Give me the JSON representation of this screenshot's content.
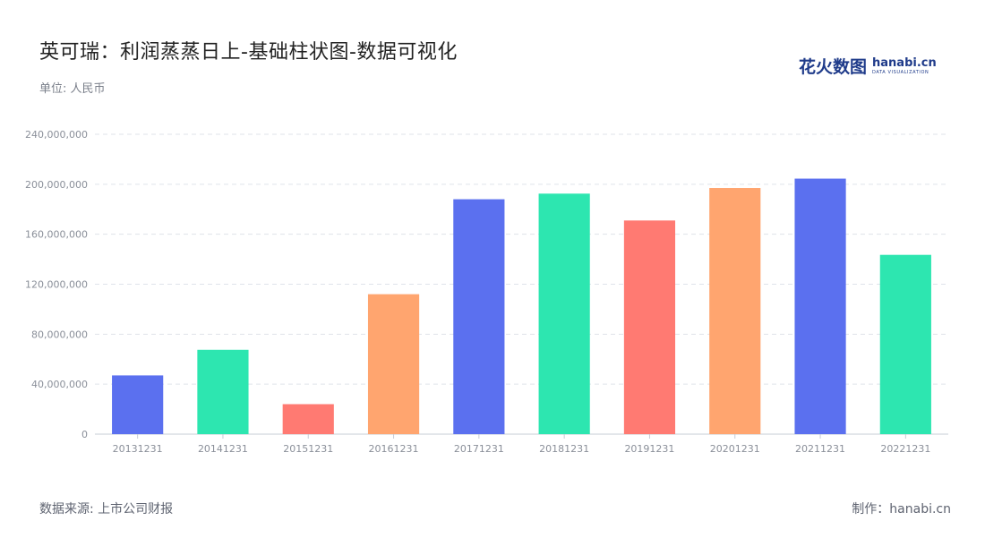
{
  "header": {
    "title": "英可瑞：利润蒸蒸日上-基础柱状图-数据可视化",
    "unit": "单位: 人民币"
  },
  "brand": {
    "cn": "花火数图",
    "en": "hanabi.cn",
    "en_sub": "DATA VISUALIZATION",
    "color": "#1f3b8a"
  },
  "footer": {
    "source": "数据来源: 上市公司财报",
    "credit": "制作：hanabi.cn"
  },
  "chart_data": {
    "type": "bar",
    "categories": [
      "20131231",
      "20141231",
      "20151231",
      "20161231",
      "20171231",
      "20181231",
      "20191231",
      "20201231",
      "20211231",
      "20221231"
    ],
    "values": [
      47000000,
      67500000,
      24000000,
      112000000,
      188000000,
      192500000,
      171000000,
      197000000,
      204500000,
      143500000
    ],
    "colors": [
      "#5b70ef",
      "#2de6b0",
      "#ff7a72",
      "#ffa56f",
      "#5b70ef",
      "#2de6b0",
      "#ff7a72",
      "#ffa56f",
      "#5b70ef",
      "#2de6b0"
    ],
    "ylim": [
      0,
      240000000
    ],
    "yticks": [
      0,
      40000000,
      80000000,
      120000000,
      160000000,
      200000000,
      240000000
    ],
    "ytick_labels": [
      "0",
      "40,000,000",
      "80,000,000",
      "120,000,000",
      "160,000,000",
      "200,000,000",
      "240,000,000"
    ],
    "grid": true
  }
}
